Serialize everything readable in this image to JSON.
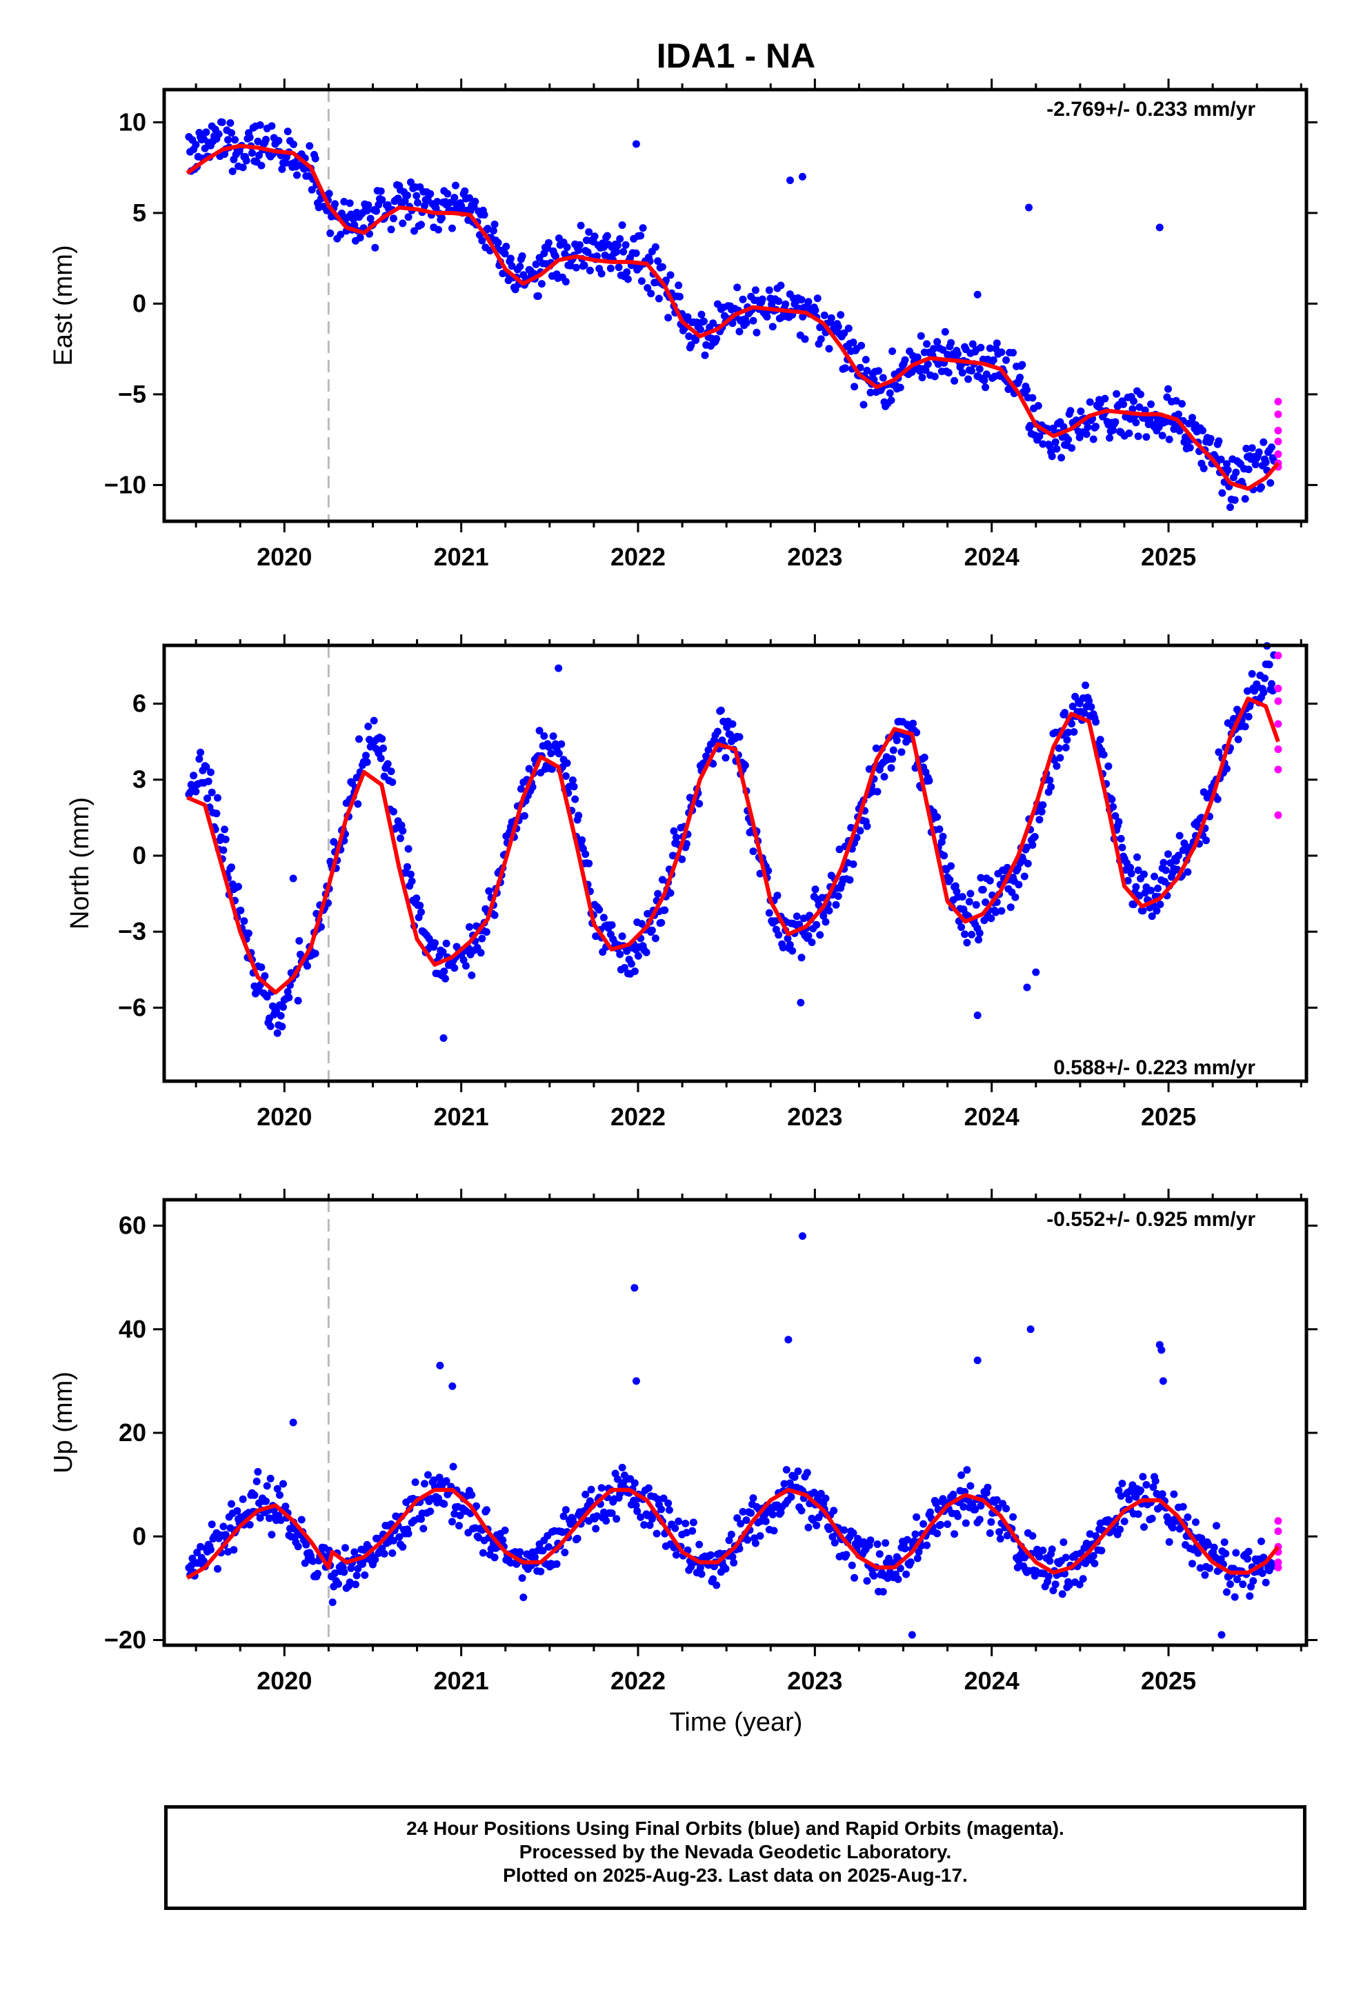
{
  "title": "IDA1 - NA",
  "xlabel": "Time (year)",
  "caption_lines": [
    "24 Hour Positions Using Final Orbits (blue) and Rapid Orbits (magenta).",
    "Processed by the Nevada Geodetic Laboratory.",
    "Plotted on 2025-Aug-23. Last data on 2025-Aug-17."
  ],
  "colors": {
    "final": "#0000ff",
    "rapid": "#ff00ff",
    "model": "#ff0000",
    "break": "#bbbbbb"
  },
  "chart_data": [
    {
      "type": "scatter",
      "ylabel": "East (mm)",
      "rate_text": "-2.769+/- 0.233 mm/yr",
      "xlim": [
        2019.32,
        2025.78
      ],
      "ylim": [
        -12.0,
        11.8
      ],
      "yticks": [
        -10,
        -5,
        0,
        5,
        10
      ],
      "ytick_labels": [
        "−10",
        "−5",
        "0",
        "5",
        "10"
      ],
      "xticks": [
        2020,
        2021,
        2022,
        2023,
        2024,
        2025
      ],
      "break_x": 2020.25,
      "series": [
        {
          "name": "Final Orbits (blue)",
          "x": [
            2019.45,
            2019.55,
            2019.65,
            2019.75,
            2019.85,
            2019.95,
            2020.05,
            2020.15,
            2020.25,
            2020.35,
            2020.45,
            2020.55,
            2020.65,
            2020.75,
            2020.85,
            2020.95,
            2021.05,
            2021.15,
            2021.25,
            2021.35,
            2021.45,
            2021.55,
            2021.65,
            2021.75,
            2021.85,
            2021.95,
            2022.05,
            2022.15,
            2022.25,
            2022.35,
            2022.45,
            2022.55,
            2022.65,
            2022.75,
            2022.85,
            2022.95,
            2023.05,
            2023.15,
            2023.25,
            2023.35,
            2023.45,
            2023.55,
            2023.65,
            2023.75,
            2023.85,
            2023.95,
            2024.05,
            2024.15,
            2024.25,
            2024.35,
            2024.45,
            2024.55,
            2024.65,
            2024.75,
            2024.85,
            2024.95,
            2025.05,
            2025.15,
            2025.25,
            2025.35,
            2025.45,
            2025.55
          ],
          "y": [
            8.2,
            8.9,
            9.0,
            8.8,
            8.7,
            8.6,
            8.1,
            7.1,
            5.4,
            4.3,
            4.2,
            5.1,
            5.6,
            5.5,
            5.3,
            5.2,
            5.4,
            3.8,
            2.2,
            1.3,
            1.6,
            2.5,
            3.0,
            2.6,
            2.4,
            2.5,
            2.6,
            1.3,
            -0.9,
            -1.8,
            -1.2,
            -0.5,
            -0.2,
            -0.4,
            -0.3,
            -0.6,
            -1.0,
            -2.0,
            -3.6,
            -4.5,
            -4.3,
            -3.5,
            -3.0,
            -2.9,
            -3.1,
            -3.4,
            -3.3,
            -4.3,
            -6.4,
            -7.6,
            -7.1,
            -6.4,
            -6.2,
            -6.3,
            -6.1,
            -6.2,
            -6.5,
            -7.5,
            -8.2,
            -9.9,
            -9.2,
            -8.7
          ]
        },
        {
          "name": "Rapid Orbits (magenta)",
          "x": [
            2025.62,
            2025.62,
            2025.62,
            2025.62,
            2025.62,
            2025.62,
            2025.62
          ],
          "y": [
            -5.4,
            -6.1,
            -7.0,
            -7.6,
            -8.3,
            -8.8,
            -9.0
          ]
        }
      ],
      "outliers": {
        "x": [
          2021.99,
          2022.86,
          2022.93,
          2024.21,
          2024.95,
          2023.92
        ],
        "y": [
          8.8,
          6.8,
          7.0,
          5.3,
          4.2,
          0.5
        ]
      },
      "model": {
        "x": [
          2019.45,
          2019.55,
          2019.65,
          2019.75,
          2019.85,
          2019.95,
          2020.05,
          2020.15,
          2020.25,
          2020.35,
          2020.45,
          2020.55,
          2020.65,
          2020.75,
          2020.85,
          2020.95,
          2021.05,
          2021.15,
          2021.25,
          2021.35,
          2021.45,
          2021.55,
          2021.65,
          2021.75,
          2021.85,
          2021.95,
          2022.05,
          2022.15,
          2022.25,
          2022.35,
          2022.45,
          2022.55,
          2022.65,
          2022.75,
          2022.85,
          2022.95,
          2023.05,
          2023.15,
          2023.25,
          2023.35,
          2023.45,
          2023.55,
          2023.65,
          2023.75,
          2023.85,
          2023.95,
          2024.05,
          2024.15,
          2024.25,
          2024.35,
          2024.45,
          2024.55,
          2024.65,
          2024.75,
          2024.85,
          2024.95,
          2025.05,
          2025.15,
          2025.25,
          2025.35,
          2025.45,
          2025.55,
          2025.62
        ],
        "y": [
          7.2,
          7.9,
          8.5,
          8.7,
          8.6,
          8.4,
          8.3,
          7.5,
          5.4,
          4.2,
          3.9,
          4.7,
          5.3,
          5.2,
          5.0,
          5.0,
          4.9,
          3.6,
          1.9,
          1.1,
          1.6,
          2.4,
          2.6,
          2.4,
          2.3,
          2.3,
          2.2,
          1.0,
          -1.0,
          -1.8,
          -1.4,
          -0.6,
          -0.2,
          -0.3,
          -0.4,
          -0.5,
          -1.1,
          -2.4,
          -3.9,
          -4.6,
          -4.2,
          -3.4,
          -3.0,
          -3.1,
          -3.2,
          -3.3,
          -3.6,
          -4.9,
          -6.7,
          -7.3,
          -6.9,
          -6.2,
          -5.9,
          -6.0,
          -6.1,
          -6.1,
          -6.4,
          -7.6,
          -8.6,
          -9.9,
          -10.2,
          -9.6,
          -8.8
        ]
      }
    },
    {
      "type": "scatter",
      "ylabel": "North (mm)",
      "rate_text": "0.588+/- 0.223 mm/yr",
      "xlim": [
        2019.32,
        2025.78
      ],
      "ylim": [
        -8.9,
        8.3
      ],
      "yticks": [
        -6,
        -3,
        0,
        3,
        6
      ],
      "ytick_labels": [
        "−6",
        "−3",
        "0",
        "3",
        "6"
      ],
      "xticks": [
        2020,
        2021,
        2022,
        2023,
        2024,
        2025
      ],
      "break_x": 2020.25,
      "series": [
        {
          "name": "Final Orbits (blue)",
          "x": [
            2019.45,
            2019.55,
            2019.65,
            2019.75,
            2019.85,
            2019.95,
            2020.05,
            2020.15,
            2020.25,
            2020.35,
            2020.45,
            2020.55,
            2020.65,
            2020.75,
            2020.85,
            2020.95,
            2021.05,
            2021.15,
            2021.25,
            2021.35,
            2021.45,
            2021.55,
            2021.65,
            2021.75,
            2021.85,
            2021.95,
            2022.05,
            2022.15,
            2022.25,
            2022.35,
            2022.45,
            2022.55,
            2022.65,
            2022.75,
            2022.85,
            2022.95,
            2023.05,
            2023.15,
            2023.25,
            2023.35,
            2023.45,
            2023.55,
            2023.65,
            2023.75,
            2023.85,
            2023.95,
            2024.05,
            2024.15,
            2024.25,
            2024.35,
            2024.45,
            2024.55,
            2024.65,
            2024.75,
            2024.85,
            2024.95,
            2025.05,
            2025.15,
            2025.25,
            2025.35,
            2025.45,
            2025.55
          ],
          "y": [
            2.5,
            3.5,
            0.5,
            -2.5,
            -5.0,
            -6.5,
            -5.0,
            -3.5,
            -1.5,
            1.5,
            4.0,
            4.5,
            1.0,
            -2.0,
            -4.0,
            -4.3,
            -3.8,
            -2.5,
            0.0,
            2.0,
            4.0,
            4.5,
            1.5,
            -2.0,
            -3.5,
            -4.0,
            -3.0,
            -1.5,
            1.0,
            3.0,
            4.8,
            4.5,
            1.5,
            -2.0,
            -3.0,
            -3.0,
            -2.0,
            -0.8,
            1.0,
            3.0,
            4.5,
            5.0,
            2.5,
            -1.0,
            -2.5,
            -2.0,
            -1.5,
            -0.5,
            1.5,
            4.0,
            5.5,
            6.0,
            3.0,
            -0.5,
            -1.5,
            -1.5,
            0.0,
            0.5,
            2.5,
            4.5,
            6.0,
            7.0
          ]
        },
        {
          "name": "Rapid Orbits (magenta)",
          "x": [
            2025.62,
            2025.62,
            2025.62,
            2025.62,
            2025.62,
            2025.62,
            2025.62
          ],
          "y": [
            7.9,
            6.6,
            6.1,
            5.2,
            4.2,
            3.4,
            1.6
          ]
        }
      ],
      "outliers": {
        "x": [
          2021.55,
          2022.92,
          2023.92,
          2024.25,
          2024.2,
          2020.05,
          2020.9
        ],
        "y": [
          7.4,
          -5.8,
          -6.3,
          -4.6,
          -5.2,
          -0.9,
          -7.2
        ]
      },
      "model": {
        "x": [
          2019.45,
          2019.55,
          2019.65,
          2019.75,
          2019.85,
          2019.95,
          2020.05,
          2020.15,
          2020.25,
          2020.35,
          2020.45,
          2020.55,
          2020.65,
          2020.75,
          2020.85,
          2020.95,
          2021.05,
          2021.15,
          2021.25,
          2021.35,
          2021.45,
          2021.55,
          2021.65,
          2021.75,
          2021.85,
          2021.95,
          2022.05,
          2022.15,
          2022.25,
          2022.35,
          2022.45,
          2022.55,
          2022.65,
          2022.75,
          2022.85,
          2022.95,
          2023.05,
          2023.15,
          2023.25,
          2023.35,
          2023.45,
          2023.55,
          2023.65,
          2023.75,
          2023.85,
          2023.95,
          2024.05,
          2024.15,
          2024.25,
          2024.35,
          2024.45,
          2024.55,
          2024.65,
          2024.75,
          2024.85,
          2024.95,
          2025.05,
          2025.15,
          2025.25,
          2025.35,
          2025.45,
          2025.55,
          2025.62
        ],
        "y": [
          2.3,
          2.0,
          -0.5,
          -3.0,
          -4.8,
          -5.4,
          -4.8,
          -3.6,
          -1.2,
          1.5,
          3.3,
          2.8,
          -0.5,
          -3.3,
          -4.3,
          -4.0,
          -3.4,
          -2.5,
          -0.2,
          2.3,
          3.9,
          3.5,
          0.5,
          -2.7,
          -3.7,
          -3.5,
          -2.8,
          -1.5,
          0.5,
          3.0,
          4.4,
          4.2,
          1.3,
          -1.8,
          -3.1,
          -2.8,
          -2.0,
          -0.5,
          1.5,
          3.8,
          5.0,
          4.8,
          1.5,
          -1.8,
          -2.6,
          -2.3,
          -1.4,
          0.0,
          2.0,
          4.3,
          5.6,
          5.3,
          2.2,
          -1.2,
          -2.0,
          -1.7,
          -0.9,
          0.4,
          2.3,
          4.7,
          6.2,
          5.9,
          4.5
        ]
      }
    },
    {
      "type": "scatter",
      "ylabel": "Up (mm)",
      "rate_text": "-0.552+/- 0.925 mm/yr",
      "xlim": [
        2019.32,
        2025.78
      ],
      "ylim": [
        -21,
        65
      ],
      "yticks": [
        -20,
        0,
        20,
        40,
        60
      ],
      "ytick_labels": [
        "−20",
        "0",
        "20",
        "40",
        "60"
      ],
      "xticks": [
        2020,
        2021,
        2022,
        2023,
        2024,
        2025
      ],
      "break_x": 2020.25,
      "series": [
        {
          "name": "Final Orbits (blue)",
          "x": [
            2019.45,
            2019.55,
            2019.65,
            2019.75,
            2019.85,
            2019.95,
            2020.05,
            2020.15,
            2020.25,
            2020.35,
            2020.45,
            2020.55,
            2020.65,
            2020.75,
            2020.85,
            2020.95,
            2021.05,
            2021.15,
            2021.25,
            2021.35,
            2021.45,
            2021.55,
            2021.65,
            2021.75,
            2021.85,
            2021.95,
            2022.05,
            2022.15,
            2022.25,
            2022.35,
            2022.45,
            2022.55,
            2022.65,
            2022.75,
            2022.85,
            2022.95,
            2023.05,
            2023.15,
            2023.25,
            2023.35,
            2023.45,
            2023.55,
            2023.65,
            2023.75,
            2023.85,
            2023.95,
            2024.05,
            2024.15,
            2024.25,
            2024.35,
            2024.45,
            2024.55,
            2024.65,
            2024.75,
            2024.85,
            2024.95,
            2025.05,
            2025.15,
            2025.25,
            2025.35,
            2025.45,
            2025.55
          ],
          "y": [
            -6,
            -3,
            1,
            4,
            7,
            6,
            2,
            -3,
            -6,
            -7,
            -5,
            -2,
            2,
            6,
            9,
            9,
            5,
            0,
            -3,
            -5,
            -4,
            -1,
            3,
            6,
            9,
            9,
            6,
            2,
            -2,
            -5,
            -5,
            -2,
            3,
            6,
            9,
            8,
            4,
            -1,
            -4,
            -6,
            -6,
            -3,
            2,
            6,
            8,
            7,
            3,
            -2,
            -5,
            -7,
            -6,
            -3,
            2,
            5,
            8,
            7,
            3,
            -1,
            -4,
            -7,
            -7,
            -5
          ]
        },
        {
          "name": "Rapid Orbits (magenta)",
          "x": [
            2025.62,
            2025.62,
            2025.62,
            2025.62,
            2025.62,
            2025.62
          ],
          "y": [
            3,
            1,
            -2,
            -3,
            -5,
            -6
          ]
        }
      ],
      "outliers": {
        "x": [
          2020.05,
          2020.88,
          2020.95,
          2021.98,
          2021.99,
          2022.85,
          2022.93,
          2023.92,
          2024.22,
          2024.95,
          2024.96,
          2024.97,
          2023.55,
          2025.3
        ],
        "y": [
          22,
          33,
          29,
          48,
          30,
          38,
          58,
          34,
          40,
          37,
          36,
          30,
          -19,
          -19
        ]
      },
      "model": {
        "x": [
          2019.45,
          2019.55,
          2019.65,
          2019.75,
          2019.85,
          2019.95,
          2020.05,
          2020.15,
          2020.25,
          2020.27,
          2020.35,
          2020.45,
          2020.55,
          2020.65,
          2020.75,
          2020.85,
          2020.95,
          2021.05,
          2021.15,
          2021.25,
          2021.35,
          2021.45,
          2021.55,
          2021.65,
          2021.75,
          2021.85,
          2021.95,
          2022.05,
          2022.15,
          2022.25,
          2022.35,
          2022.45,
          2022.55,
          2022.65,
          2022.75,
          2022.85,
          2022.95,
          2023.05,
          2023.15,
          2023.25,
          2023.35,
          2023.45,
          2023.55,
          2023.65,
          2023.75,
          2023.85,
          2023.95,
          2024.05,
          2024.15,
          2024.25,
          2024.35,
          2024.45,
          2024.55,
          2024.65,
          2024.75,
          2024.85,
          2024.95,
          2025.05,
          2025.15,
          2025.25,
          2025.35,
          2025.45,
          2025.55,
          2025.62
        ],
        "y": [
          -8,
          -6,
          -2,
          2,
          5,
          6,
          3,
          -1,
          -6,
          -3,
          -5,
          -4,
          -1,
          3,
          7,
          9,
          9,
          6,
          1,
          -3,
          -5,
          -5,
          -2,
          2,
          6,
          9,
          9,
          7,
          2,
          -3,
          -5,
          -5,
          -2,
          3,
          7,
          9,
          8,
          5,
          0,
          -4,
          -6,
          -6,
          -3,
          2,
          6,
          8,
          7,
          4,
          -1,
          -5,
          -7,
          -6,
          -3,
          1,
          5,
          7,
          7,
          4,
          -1,
          -5,
          -7,
          -7,
          -5,
          -2
        ]
      }
    }
  ]
}
